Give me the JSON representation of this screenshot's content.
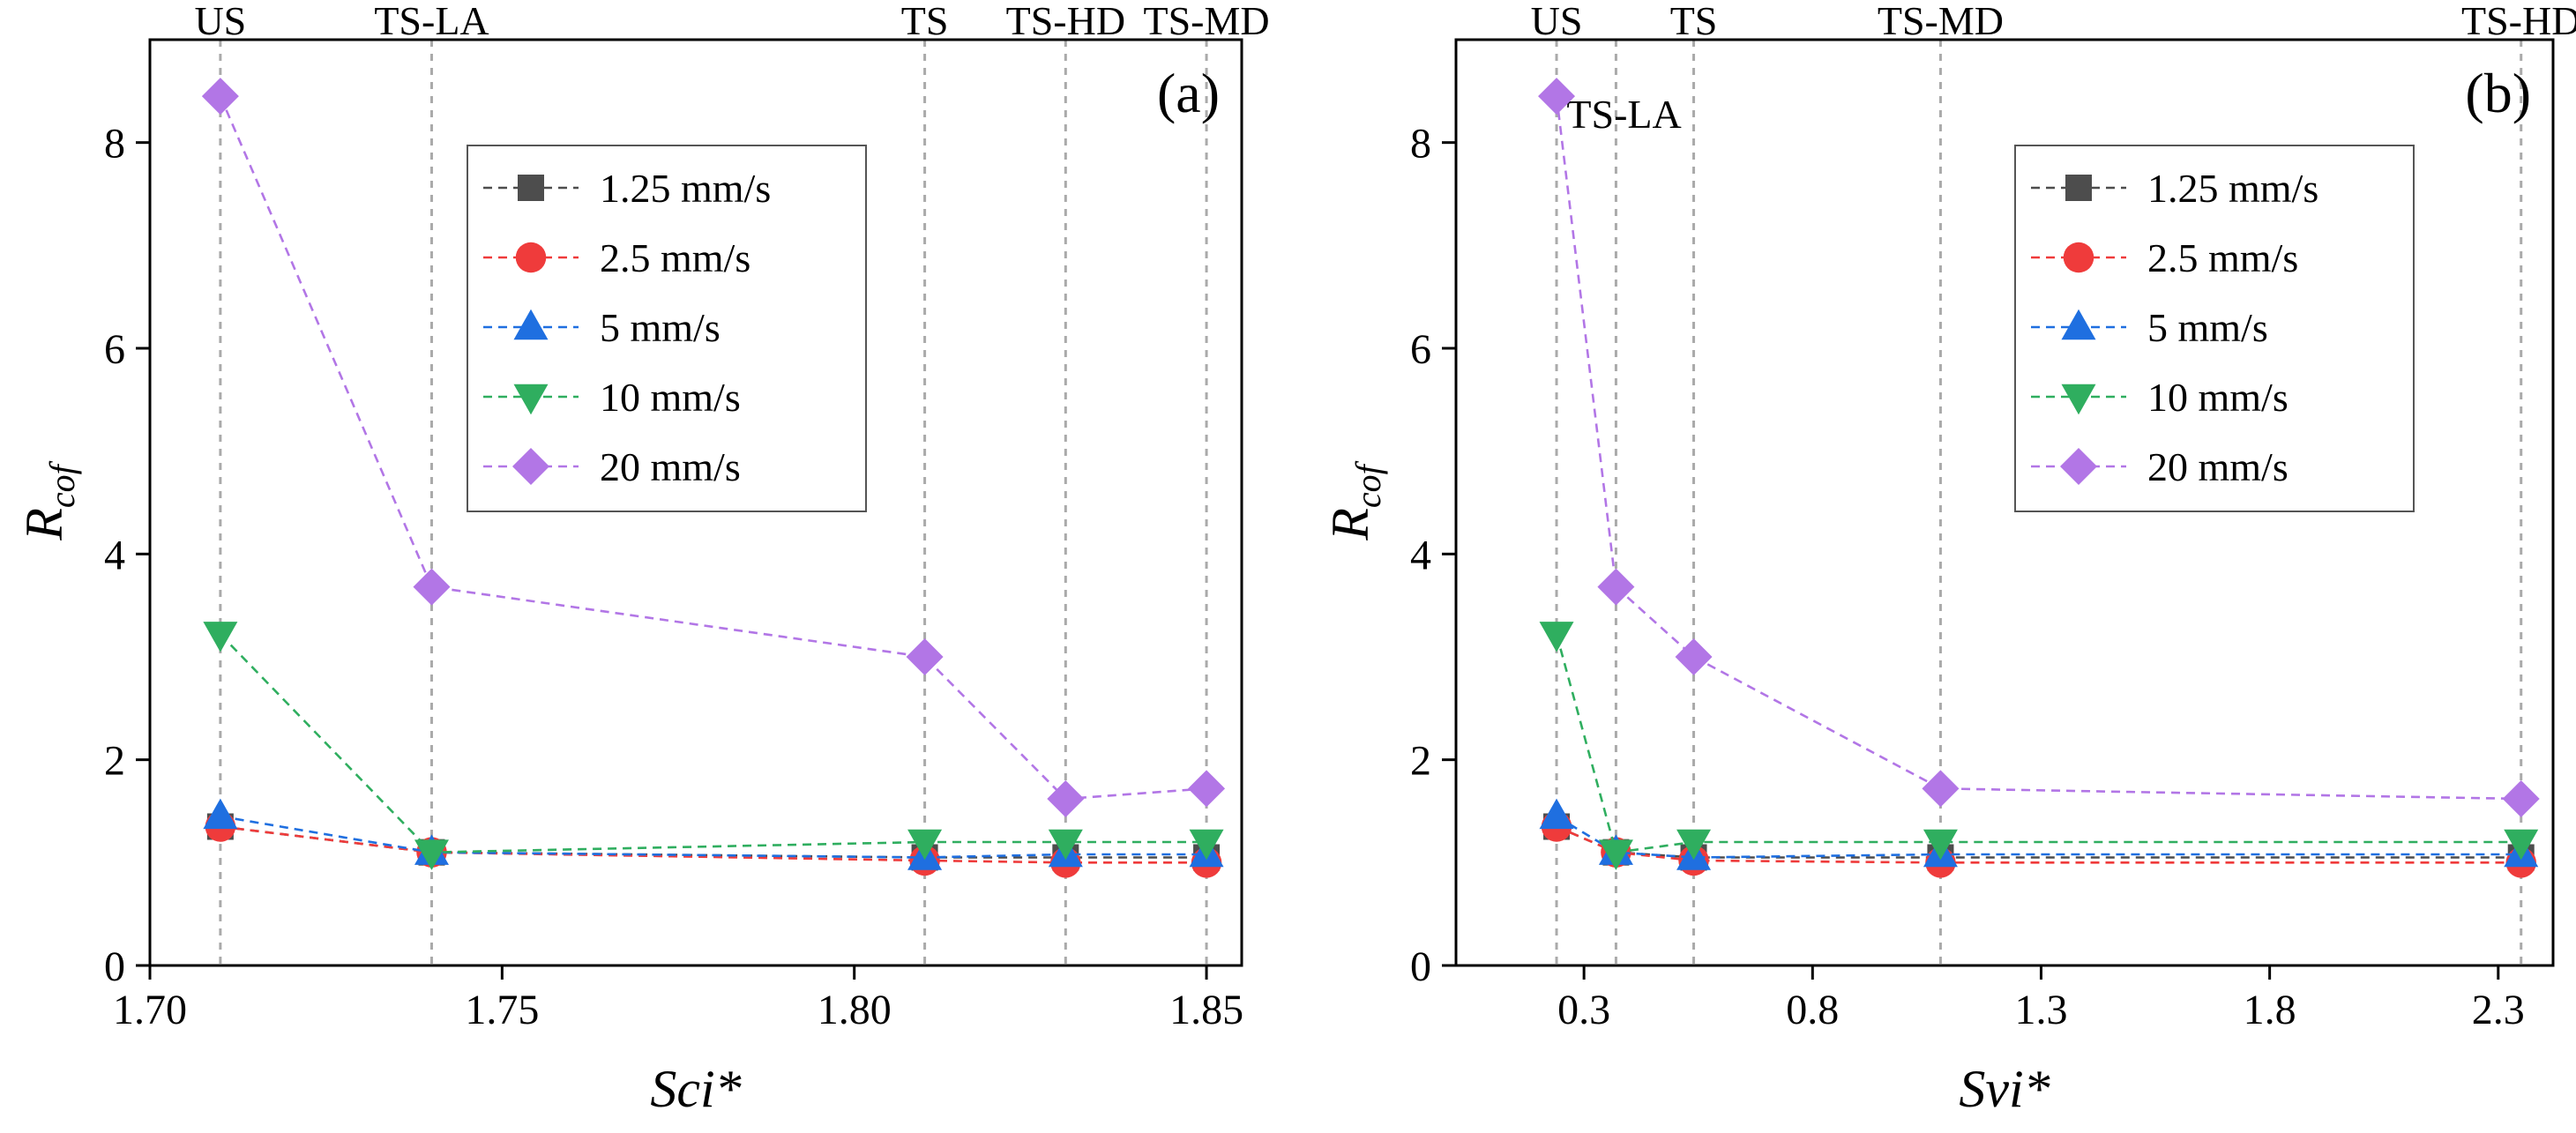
{
  "legend": [
    {
      "key": "s125",
      "label": "1.25 mm/s",
      "marker": "square",
      "color": "#4d4d4d"
    },
    {
      "key": "s25",
      "label": "2.5 mm/s",
      "marker": "circle",
      "color": "#ef3b3b"
    },
    {
      "key": "s5",
      "label": "5 mm/s",
      "marker": "triangle-up",
      "color": "#1f6fe0"
    },
    {
      "key": "s10",
      "label": "10 mm/s",
      "marker": "triangle-down",
      "color": "#2fae5f"
    },
    {
      "key": "s20",
      "label": "20 mm/s",
      "marker": "diamond",
      "color": "#b276e6"
    }
  ],
  "chart_data": [
    {
      "panel": "(a)",
      "type": "line",
      "xlabel": "Sci*",
      "ylabel": "Rcof",
      "xlim": [
        1.7,
        1.855
      ],
      "ylim": [
        0,
        9
      ],
      "xticks": [
        "1.70",
        "1.75",
        "1.80",
        "1.85"
      ],
      "xtick_values": [
        1.7,
        1.75,
        1.8,
        1.85
      ],
      "yticks": [
        "0",
        "2",
        "4",
        "6",
        "8"
      ],
      "ytick_values": [
        0,
        2,
        4,
        6,
        8
      ],
      "reference_lines": [
        {
          "label": "US",
          "x": 1.71
        },
        {
          "label": "TS-LA",
          "x": 1.74
        },
        {
          "label": "TS",
          "x": 1.81
        },
        {
          "label": "TS-HD",
          "x": 1.83
        },
        {
          "label": "TS-MD",
          "x": 1.85
        }
      ],
      "x": [
        1.71,
        1.74,
        1.81,
        1.83,
        1.85
      ],
      "series": [
        {
          "name": "1.25 mm/s",
          "values": [
            1.35,
            1.1,
            1.05,
            1.05,
            1.05
          ]
        },
        {
          "name": "2.5 mm/s",
          "values": [
            1.35,
            1.1,
            1.02,
            1.0,
            1.0
          ]
        },
        {
          "name": "5 mm/s",
          "values": [
            1.45,
            1.1,
            1.05,
            1.08,
            1.08
          ]
        },
        {
          "name": "10 mm/s",
          "values": [
            3.22,
            1.1,
            1.2,
            1.2,
            1.2
          ]
        },
        {
          "name": "20 mm/s",
          "values": [
            8.45,
            3.68,
            3.0,
            1.62,
            1.72
          ]
        }
      ]
    },
    {
      "panel": "(b)",
      "type": "line",
      "xlabel": "Svi*",
      "ylabel": "Rcof",
      "xlim": [
        0.02,
        2.42
      ],
      "ylim": [
        0,
        9
      ],
      "xticks": [
        "0.3",
        "0.8",
        "1.3",
        "1.8",
        "2.3"
      ],
      "xtick_values": [
        0.3,
        0.8,
        1.3,
        1.8,
        2.3
      ],
      "yticks": [
        "0",
        "2",
        "4",
        "6",
        "8"
      ],
      "ytick_values": [
        0,
        2,
        4,
        6,
        8
      ],
      "reference_lines": [
        {
          "label": "US",
          "x": 0.24
        },
        {
          "label": "TS-LA",
          "x": 0.37
        },
        {
          "label": "TS",
          "x": 0.54
        },
        {
          "label": "TS-MD",
          "x": 1.08
        },
        {
          "label": "TS-HD",
          "x": 2.35
        }
      ],
      "x": [
        0.24,
        0.37,
        0.54,
        1.08,
        2.35
      ],
      "series": [
        {
          "name": "1.25 mm/s",
          "values": [
            1.35,
            1.1,
            1.05,
            1.05,
            1.05
          ]
        },
        {
          "name": "2.5 mm/s",
          "values": [
            1.35,
            1.1,
            1.02,
            1.0,
            1.0
          ]
        },
        {
          "name": "5 mm/s",
          "values": [
            1.45,
            1.1,
            1.05,
            1.08,
            1.08
          ]
        },
        {
          "name": "10 mm/s",
          "values": [
            3.22,
            1.1,
            1.2,
            1.2,
            1.2
          ]
        },
        {
          "name": "20 mm/s",
          "values": [
            8.45,
            3.68,
            3.0,
            1.72,
            1.62
          ]
        }
      ]
    }
  ]
}
